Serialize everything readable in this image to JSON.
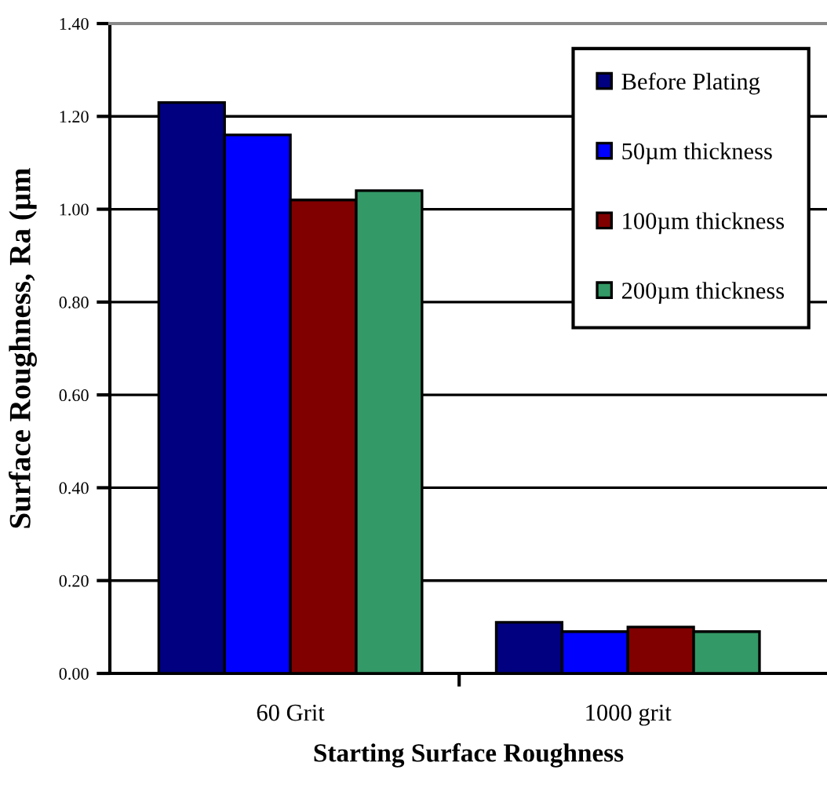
{
  "chart_data": {
    "type": "bar",
    "xlabel": "Starting Surface Roughness",
    "ylabel": "Surface Roughness, Ra (µm",
    "categories": [
      "60 Grit",
      "1000 grit"
    ],
    "series": [
      {
        "name": "Before Plating",
        "color": "#000080",
        "values": [
          1.23,
          0.11
        ]
      },
      {
        "name": "50µm thickness",
        "color": "#0000ff",
        "values": [
          1.16,
          0.09
        ]
      },
      {
        "name": "100µm thickness",
        "color": "#800000",
        "values": [
          1.02,
          0.1
        ]
      },
      {
        "name": "200µm thickness",
        "color": "#339966",
        "values": [
          1.04,
          0.09
        ]
      }
    ],
    "ylim": [
      0,
      1.4
    ],
    "yticks": [
      {
        "value": 0,
        "label": "0.00"
      },
      {
        "value": 0.2,
        "label": "0.20"
      },
      {
        "value": 0.4,
        "label": "0.40"
      },
      {
        "value": 0.6,
        "label": "0.60"
      },
      {
        "value": 0.8,
        "label": "0.80"
      },
      {
        "value": 1.0,
        "label": "1.00"
      },
      {
        "value": 1.2,
        "label": "1.20"
      },
      {
        "value": 1.4,
        "label": "1.40"
      }
    ],
    "grid": "y",
    "legend": "top right"
  }
}
